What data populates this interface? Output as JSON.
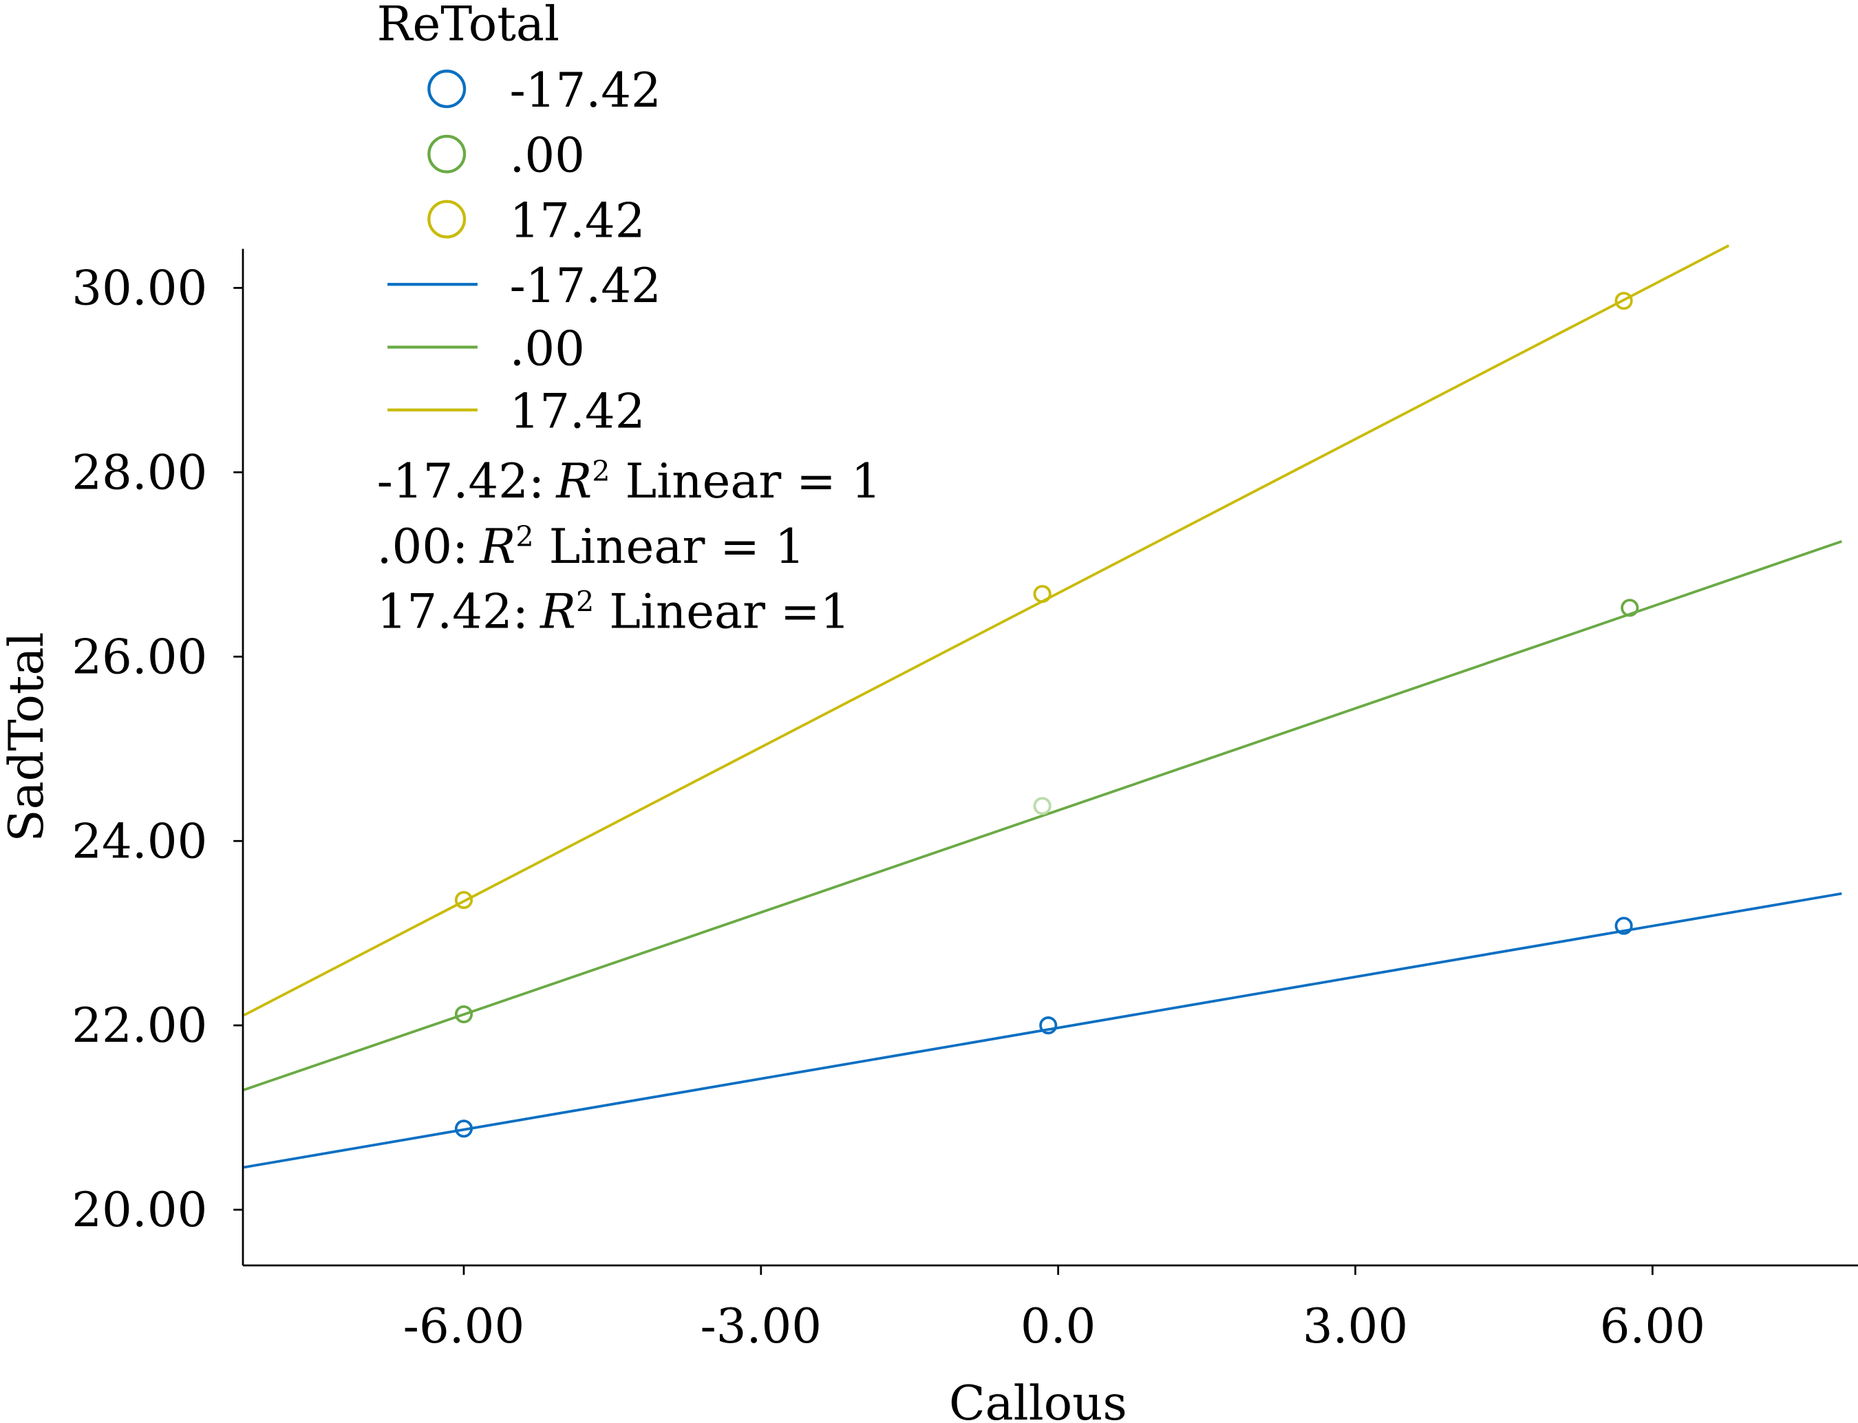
{
  "chart_data": {
    "type": "scatter",
    "xlabel": "Callous",
    "ylabel": "SadTotal",
    "xlim": [
      -8.22,
      7.95
    ],
    "ylim": [
      19.4,
      30.5
    ],
    "x_ticks": [
      "-6.00",
      "-3.00",
      "0.0",
      "3.00",
      "6.00"
    ],
    "x_tick_values": [
      -6,
      -3,
      0,
      3,
      6
    ],
    "y_ticks": [
      "20.00",
      "22.00",
      "24.00",
      "26.00",
      "28.00",
      "30.00"
    ],
    "y_tick_values": [
      20,
      22,
      24,
      26,
      28,
      30
    ],
    "grid": false,
    "legend": {
      "title": "ReTotal",
      "placement": "top-left",
      "marker_entries": [
        "-17.42",
        ".00",
        "17.42"
      ],
      "line_entries": [
        "-17.42",
        ".00",
        "17.42"
      ]
    },
    "annotations": [
      {
        "prefix": "-17.42:",
        "r": "R",
        "sup": "2",
        "suffix": " Linear = 1"
      },
      {
        "prefix": ".00:",
        "r": "R",
        "sup": "2",
        "suffix": " Linear = 1"
      },
      {
        "prefix": "17.42:",
        "r": "R",
        "sup": "2",
        "suffix": " Linear =1"
      }
    ],
    "series": [
      {
        "name": "-17.42",
        "color": "#0a6fc2",
        "points": [
          {
            "x": -6.0,
            "y": 20.88
          },
          {
            "x": -0.1,
            "y": 22.0
          },
          {
            "x": 5.71,
            "y": 23.08
          }
        ],
        "fit_line": {
          "x": [
            -8.22,
            7.91
          ],
          "y": [
            20.46,
            23.43
          ]
        }
      },
      {
        "name": ".00",
        "color": "#6aaa45",
        "faded_point_color": "#bcdcaa",
        "points": [
          {
            "x": -6.0,
            "y": 22.12
          },
          {
            "x": -0.16,
            "y": 24.38
          },
          {
            "x": 5.77,
            "y": 26.53
          }
        ],
        "fit_line": {
          "x": [
            -8.22,
            7.91
          ],
          "y": [
            21.3,
            27.25
          ]
        }
      },
      {
        "name": "17.42",
        "color": "#c9bb0a",
        "points": [
          {
            "x": -6.0,
            "y": 23.36
          },
          {
            "x": -0.16,
            "y": 26.68
          },
          {
            "x": 5.71,
            "y": 29.86
          }
        ],
        "fit_line": {
          "x": [
            -8.22,
            6.77
          ],
          "y": [
            22.11,
            30.46
          ]
        }
      }
    ]
  }
}
